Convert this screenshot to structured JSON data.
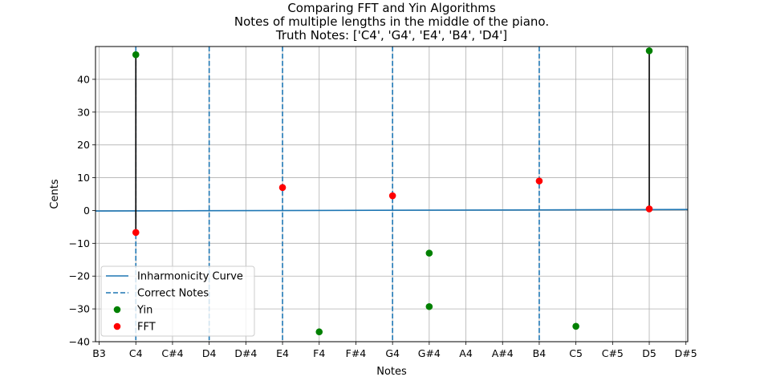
{
  "chart_data": {
    "type": "scatter",
    "title_lines": [
      "Comparing FFT and Yin Algorithms",
      "Notes of multiple lengths in the middle of the piano.",
      "Truth Notes: ['C4', 'G4', 'E4', 'B4', 'D4']"
    ],
    "xlabel": "Notes",
    "ylabel": "Cents",
    "x_tick_labels": [
      "B3",
      "C4",
      "C#4",
      "D4",
      "D#4",
      "E4",
      "F4",
      "F#4",
      "G4",
      "G#4",
      "A4",
      "A#4",
      "B4",
      "C5",
      "C#5",
      "D5",
      "D#5"
    ],
    "xlim": [
      -0.1,
      16.05
    ],
    "ylim": [
      -40,
      50
    ],
    "y_ticks": [
      -40,
      -30,
      -20,
      -10,
      0,
      10,
      20,
      30,
      40
    ],
    "y_tick_labels": [
      "−40",
      "−30",
      "−20",
      "−10",
      "0",
      "10",
      "20",
      "30",
      "40"
    ],
    "grid": true,
    "legend_position": "lower-left",
    "inharmonicity_curve": {
      "name": "Inharmonicity Curve",
      "color": "#1f77b4",
      "x": [
        -0.1,
        16.05
      ],
      "y": [
        -0.15,
        0.3
      ]
    },
    "correct_notes": {
      "name": "Correct Notes",
      "color": "#1f77b4",
      "style": "dashed",
      "x_notes": [
        "C4",
        "D4",
        "E4",
        "G4",
        "B4"
      ],
      "x": [
        1,
        3,
        5,
        8,
        12
      ]
    },
    "series": [
      {
        "name": "Yin",
        "color": "#008000",
        "points": [
          {
            "note": "C4",
            "x": 1,
            "y": 47.5
          },
          {
            "note": "F4",
            "x": 6,
            "y": -37
          },
          {
            "note": "G#4",
            "x": 9,
            "y": -13
          },
          {
            "note": "G#4",
            "x": 9,
            "y": -29.3
          },
          {
            "note": "C5",
            "x": 13,
            "y": -35.3
          },
          {
            "note": "D5",
            "x": 15,
            "y": 48.7
          }
        ]
      },
      {
        "name": "FFT",
        "color": "#ff0000",
        "points": [
          {
            "note": "C4",
            "x": 1,
            "y": -6.7
          },
          {
            "note": "E4",
            "x": 5,
            "y": 7
          },
          {
            "note": "G4",
            "x": 8,
            "y": 4.5
          },
          {
            "note": "B4",
            "x": 12,
            "y": 9
          },
          {
            "note": "D5",
            "x": 15,
            "y": 0.5
          }
        ]
      }
    ],
    "connectors": [
      {
        "x": 1,
        "y_from": -6.7,
        "y_to": 47.5
      },
      {
        "x": 15,
        "y_from": 0.5,
        "y_to": 48.7
      }
    ],
    "legend": [
      {
        "label": "Inharmonicity Curve",
        "kind": "line",
        "color": "#1f77b4"
      },
      {
        "label": "Correct Notes",
        "kind": "dashed",
        "color": "#1f77b4"
      },
      {
        "label": "Yin",
        "kind": "marker",
        "color": "#008000"
      },
      {
        "label": "FFT",
        "kind": "marker",
        "color": "#ff0000"
      }
    ]
  }
}
